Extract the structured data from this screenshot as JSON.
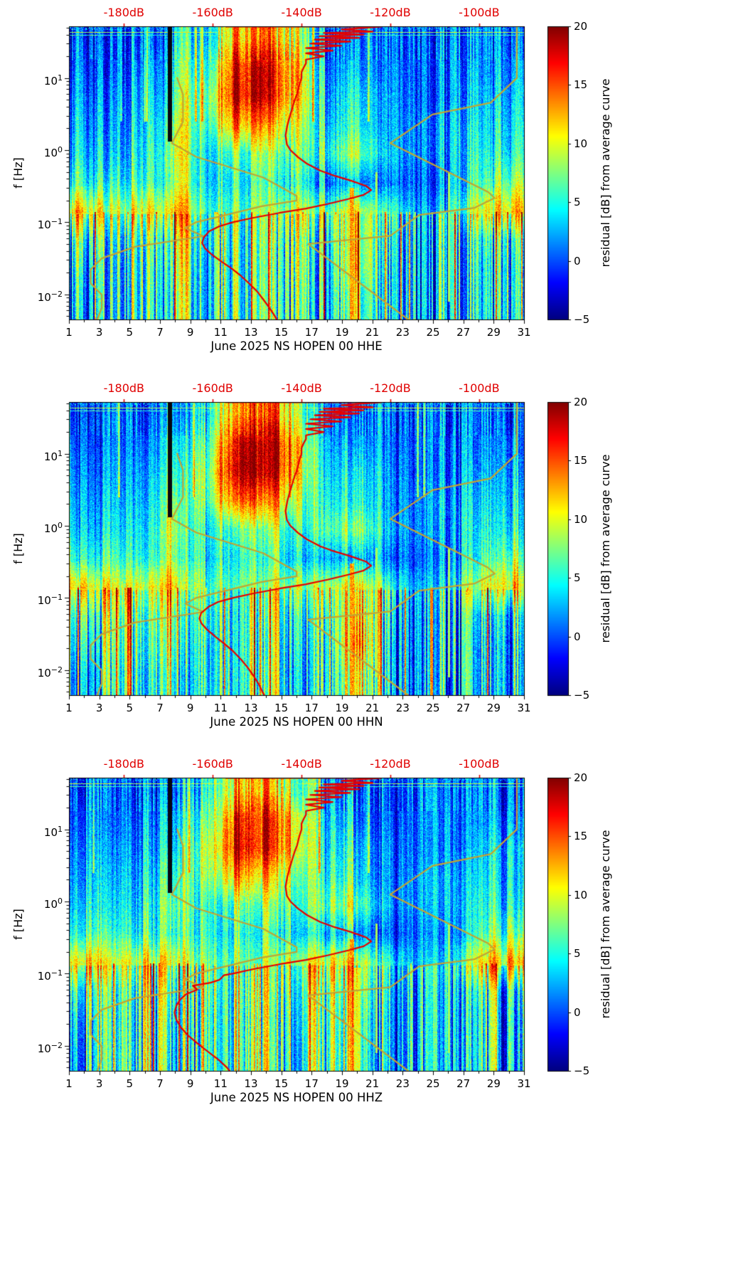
{
  "chart_data": {
    "type": "heatmap",
    "description": "Three daily power-spectral-density residual spectrograms (jet colormap) with mean spectrum curve (red, read on top dB axis) and Peterson NLNM/NHNM noise model curves (dark yellow).",
    "x_axis": {
      "label": "",
      "min": 1,
      "max": 31,
      "major_ticks": [
        1,
        3,
        5,
        7,
        9,
        11,
        13,
        15,
        17,
        19,
        21,
        23,
        25,
        27,
        29,
        31
      ],
      "tick_labels": [
        "1",
        "3",
        "5",
        "7",
        "9",
        "11",
        "13",
        "15",
        "17",
        "19",
        "21",
        "23",
        "25",
        "27",
        "29",
        "31"
      ],
      "minor_ticks": [
        2,
        4,
        6,
        8,
        10,
        12,
        14,
        16,
        18,
        20,
        22,
        24,
        26,
        28,
        30
      ]
    },
    "y_axis": {
      "label": "f [Hz]",
      "scale": "log",
      "fmin": 0.0045,
      "fmax": 52,
      "tick_base": "10",
      "tick_exponents": [
        "1",
        "0",
        "−1",
        "−2"
      ],
      "tick_values": [
        10,
        1,
        0.1,
        0.01
      ]
    },
    "top_db_axis": {
      "color": "#e00000",
      "tick_values": [
        -180,
        -160,
        -140,
        -120,
        -100
      ],
      "labels": [
        "-180dB",
        "-160dB",
        "-140dB",
        "-120dB",
        "-100dB"
      ],
      "slope": 0.2927,
      "intercept": 57.31
    },
    "colorbar": {
      "label": "residual [dB] from average curve",
      "colormap": "jet",
      "vmin": -5,
      "vmax": 20,
      "tick_values": [
        20,
        15,
        10,
        5,
        0,
        -5
      ],
      "tick_labels": [
        "20",
        "15",
        "10",
        "5",
        "0",
        "−5"
      ]
    },
    "mean_curve_color": "#e60000",
    "grid_day_centers": [
      2,
      4,
      6,
      8,
      10,
      12,
      14,
      16,
      18,
      20,
      22,
      24,
      26,
      28,
      30
    ],
    "grid_freq_centers_hz": [
      35,
      16,
      6.3,
      2.5,
      1,
      0.4,
      0.16,
      0.063,
      0.025,
      0.009
    ],
    "mean_curve_high_freq": [
      [
        51.5,
        -157
      ],
      [
        51.5,
        -122
      ],
      [
        47,
        -131
      ],
      [
        44,
        -124
      ],
      [
        42,
        -135
      ],
      [
        40,
        -126
      ],
      [
        38,
        -136
      ],
      [
        36,
        -127
      ],
      [
        34,
        -137
      ],
      [
        32,
        -129
      ],
      [
        30,
        -138
      ],
      [
        28,
        -131
      ],
      [
        26,
        -139
      ],
      [
        24,
        -133
      ],
      [
        22,
        -139
      ],
      [
        20,
        -135
      ],
      [
        18,
        -139
      ],
      [
        16,
        -139
      ],
      [
        14,
        -139.5
      ],
      [
        12,
        -140
      ],
      [
        10,
        -140
      ],
      [
        8,
        -140.5
      ],
      [
        6,
        -141
      ],
      [
        5,
        -141.5
      ],
      [
        4,
        -142
      ],
      [
        3,
        -142.6
      ],
      [
        2.2,
        -143.2
      ],
      [
        1.6,
        -143.6
      ],
      [
        1.2,
        -143.3
      ],
      [
        1,
        -142.5
      ],
      [
        0.8,
        -140.8
      ],
      [
        0.65,
        -138.8
      ],
      [
        0.52,
        -135.8
      ],
      [
        0.44,
        -132.5
      ],
      [
        0.38,
        -129
      ],
      [
        0.32,
        -125.5
      ],
      [
        0.28,
        -124.3
      ],
      [
        0.24,
        -126
      ],
      [
        0.21,
        -129.5
      ],
      [
        0.18,
        -134
      ],
      [
        0.155,
        -139
      ],
      [
        0.135,
        -145
      ],
      [
        0.115,
        -151
      ],
      [
        0.1,
        -155.5
      ]
    ],
    "noise_models": {
      "color": "#c2a433",
      "nlnm": [
        [
          10,
          -168
        ],
        [
          5.882,
          -166.7
        ],
        [
          2.5,
          -166.7
        ],
        [
          1.25,
          -169.2
        ],
        [
          0.806,
          -163.7
        ],
        [
          0.4167,
          -148.6
        ],
        [
          0.2326,
          -141.1
        ],
        [
          0.2,
          -141.1
        ],
        [
          0.1667,
          -149
        ],
        [
          0.1,
          -163.8
        ],
        [
          0.0833,
          -166.2
        ],
        [
          0.0641,
          -162.1
        ],
        [
          0.0457,
          -177.5
        ],
        [
          0.0316,
          -185
        ],
        [
          0.0222,
          -187.5
        ],
        [
          0.0143,
          -187.5
        ],
        [
          0.0099,
          -185
        ],
        [
          0.0065,
          -185
        ],
        [
          0.0045,
          -186
        ]
      ],
      "nhnm": [
        [
          50,
          -91.5
        ],
        [
          10,
          -91.5
        ],
        [
          4.545,
          -97.4
        ],
        [
          3.125,
          -110.5
        ],
        [
          1.25,
          -120
        ],
        [
          0.2632,
          -98
        ],
        [
          0.2174,
          -96.5
        ],
        [
          0.1587,
          -101
        ],
        [
          0.1266,
          -113.5
        ],
        [
          0.0649,
          -120
        ],
        [
          0.05,
          -138.5
        ],
        [
          0.0045,
          -116
        ]
      ]
    },
    "panels": [
      {
        "title": "June 2025 NS HOPEN 00 HHE",
        "channel": "HHE",
        "residual_grid": [
          [
            0,
            0,
            0,
            3,
            4,
            13,
            14,
            9,
            1,
            2,
            0,
            0,
            0,
            1,
            1
          ],
          [
            1,
            0,
            1,
            5,
            6,
            17,
            18,
            12,
            2,
            3,
            0,
            0,
            1,
            1,
            2
          ],
          [
            2,
            1,
            2,
            6,
            8,
            18,
            18,
            12,
            3,
            5,
            1,
            0,
            1,
            2,
            3
          ],
          [
            3,
            2,
            3,
            8,
            7,
            14,
            13,
            9,
            4,
            6,
            1,
            1,
            2,
            3,
            4
          ],
          [
            4,
            3,
            4,
            9,
            5,
            7,
            8,
            7,
            6,
            9,
            2,
            1,
            2,
            4,
            5
          ],
          [
            6,
            5,
            5,
            8,
            5,
            5,
            6,
            5,
            2,
            3,
            0,
            0,
            1,
            5,
            8
          ],
          [
            12,
            9,
            10,
            12,
            7,
            7,
            8,
            9,
            8,
            11,
            5,
            2,
            3,
            9,
            12
          ],
          [
            6,
            5,
            6,
            8,
            5,
            6,
            7,
            6,
            5,
            12,
            3,
            1,
            2,
            4,
            5
          ],
          [
            4,
            4,
            5,
            7,
            4,
            6,
            6,
            6,
            4,
            12,
            2,
            1,
            2,
            3,
            4
          ],
          [
            3,
            4,
            5,
            6,
            4,
            6,
            7,
            5,
            4,
            9,
            2,
            1,
            2,
            3,
            4
          ]
        ],
        "mean_curve_low_freq": [
          [
            0.088,
            -158.5
          ],
          [
            0.075,
            -160.8
          ],
          [
            0.062,
            -162
          ],
          [
            0.052,
            -162.4
          ],
          [
            0.044,
            -161.8
          ],
          [
            0.036,
            -160.3
          ],
          [
            0.029,
            -158.2
          ],
          [
            0.023,
            -155.8
          ],
          [
            0.018,
            -153.6
          ],
          [
            0.014,
            -151.7
          ],
          [
            0.011,
            -150
          ],
          [
            0.0085,
            -148.6
          ],
          [
            0.0065,
            -147.2
          ],
          [
            0.005,
            -146
          ],
          [
            0.0045,
            -145.6
          ]
        ]
      },
      {
        "title": "June 2025 NS HOPEN 00 HHN",
        "channel": "HHN",
        "residual_grid": [
          [
            0,
            0,
            0,
            3,
            4,
            14,
            15,
            10,
            1,
            2,
            0,
            0,
            0,
            1,
            1
          ],
          [
            1,
            0,
            1,
            5,
            6,
            18,
            19,
            13,
            2,
            3,
            0,
            0,
            1,
            1,
            2
          ],
          [
            2,
            1,
            2,
            6,
            8,
            19,
            19,
            13,
            3,
            5,
            1,
            0,
            1,
            2,
            3
          ],
          [
            3,
            2,
            3,
            8,
            7,
            15,
            14,
            10,
            4,
            6,
            1,
            1,
            2,
            3,
            4
          ],
          [
            4,
            3,
            4,
            9,
            5,
            7,
            8,
            7,
            6,
            9,
            2,
            1,
            2,
            4,
            5
          ],
          [
            6,
            5,
            5,
            8,
            5,
            5,
            6,
            5,
            2,
            4,
            0,
            0,
            1,
            5,
            8
          ],
          [
            12,
            9,
            10,
            12,
            7,
            7,
            8,
            10,
            8,
            12,
            5,
            2,
            3,
            9,
            12
          ],
          [
            7,
            6,
            7,
            9,
            5,
            6,
            7,
            7,
            5,
            14,
            3,
            1,
            2,
            4,
            5
          ],
          [
            5,
            5,
            6,
            8,
            4,
            6,
            6,
            6,
            4,
            16,
            2,
            1,
            2,
            3,
            4
          ],
          [
            3,
            4,
            5,
            6,
            4,
            6,
            7,
            5,
            4,
            12,
            2,
            1,
            2,
            3,
            4
          ]
        ],
        "mean_curve_low_freq": [
          [
            0.088,
            -158.8
          ],
          [
            0.075,
            -161
          ],
          [
            0.062,
            -162.6
          ],
          [
            0.052,
            -163
          ],
          [
            0.044,
            -162.5
          ],
          [
            0.036,
            -161.2
          ],
          [
            0.029,
            -159.4
          ],
          [
            0.023,
            -157.3
          ],
          [
            0.018,
            -155.3
          ],
          [
            0.014,
            -153.6
          ],
          [
            0.011,
            -152.2
          ],
          [
            0.0085,
            -150.9
          ],
          [
            0.0065,
            -149.7
          ],
          [
            0.005,
            -148.8
          ],
          [
            0.0045,
            -148.4
          ]
        ]
      },
      {
        "title": "June 2025 NS HOPEN 00 HHZ",
        "channel": "HHZ",
        "residual_grid": [
          [
            0,
            0,
            0,
            3,
            4,
            12,
            13,
            9,
            1,
            2,
            0,
            0,
            0,
            1,
            1
          ],
          [
            1,
            0,
            1,
            5,
            6,
            16,
            17,
            12,
            2,
            3,
            0,
            0,
            1,
            1,
            2
          ],
          [
            2,
            1,
            2,
            6,
            8,
            17,
            17,
            12,
            3,
            5,
            1,
            0,
            1,
            2,
            4
          ],
          [
            3,
            2,
            3,
            8,
            7,
            13,
            12,
            9,
            4,
            6,
            1,
            1,
            2,
            3,
            4
          ],
          [
            4,
            3,
            4,
            9,
            5,
            7,
            8,
            7,
            6,
            9,
            2,
            1,
            2,
            4,
            5
          ],
          [
            6,
            5,
            5,
            8,
            5,
            5,
            6,
            5,
            2,
            4,
            0,
            0,
            1,
            5,
            8
          ],
          [
            12,
            9,
            10,
            12,
            7,
            7,
            8,
            10,
            9,
            12,
            5,
            2,
            3,
            10,
            13
          ],
          [
            6,
            5,
            7,
            9,
            6,
            7,
            8,
            8,
            6,
            10,
            4,
            1,
            2,
            4,
            5
          ],
          [
            4,
            5,
            6,
            8,
            5,
            7,
            7,
            7,
            5,
            9,
            3,
            1,
            2,
            3,
            4
          ],
          [
            3,
            5,
            6,
            7,
            5,
            7,
            8,
            6,
            5,
            8,
            3,
            1,
            2,
            3,
            4
          ]
        ],
        "mean_curve_low_freq": [
          [
            0.095,
            -157.5
          ],
          [
            0.082,
            -158.5
          ],
          [
            0.075,
            -160.5
          ],
          [
            0.068,
            -164.5
          ],
          [
            0.06,
            -163.5
          ],
          [
            0.052,
            -166
          ],
          [
            0.044,
            -167.3
          ],
          [
            0.036,
            -168.2
          ],
          [
            0.029,
            -168.6
          ],
          [
            0.023,
            -168.2
          ],
          [
            0.018,
            -167.2
          ],
          [
            0.014,
            -165.6
          ],
          [
            0.011,
            -163.6
          ],
          [
            0.0085,
            -161.3
          ],
          [
            0.0065,
            -158.8
          ],
          [
            0.005,
            -156.8
          ],
          [
            0.0045,
            -156.2
          ]
        ]
      }
    ]
  }
}
